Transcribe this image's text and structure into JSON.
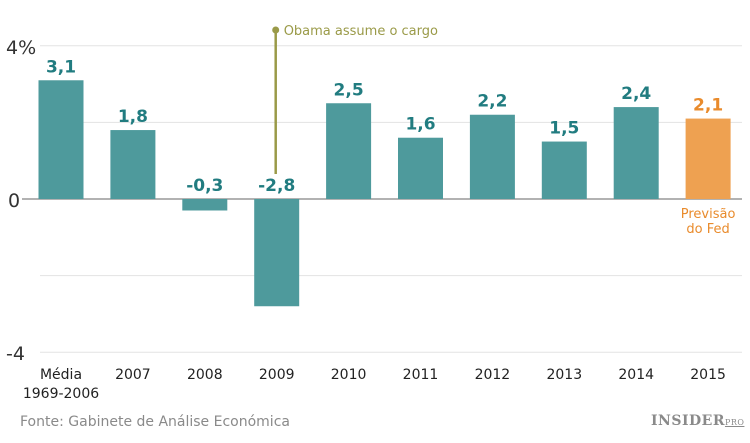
{
  "chart_data": {
    "type": "bar",
    "categories": [
      [
        "Média",
        "1969-2006"
      ],
      [
        "2007"
      ],
      [
        "2008"
      ],
      [
        "2009"
      ],
      [
        "2010"
      ],
      [
        "2011"
      ],
      [
        "2012"
      ],
      [
        "2013"
      ],
      [
        "2014"
      ],
      [
        "2015"
      ]
    ],
    "values": [
      3.1,
      1.8,
      -0.3,
      -2.8,
      2.5,
      1.6,
      2.2,
      1.5,
      2.4,
      2.1
    ],
    "value_labels": [
      "3,1",
      "1,8",
      "-0,3",
      "-2,8",
      "2,5",
      "1,6",
      "2,2",
      "1,5",
      "2,4",
      "2,1"
    ],
    "ylim": [
      -4,
      4
    ],
    "y_ticks": [
      {
        "value": 4,
        "label": "4%"
      },
      {
        "value": 0,
        "label": "0"
      },
      {
        "value": -4,
        "label": "-4"
      }
    ],
    "gridlines": [
      4,
      2,
      0,
      -2,
      -4
    ],
    "grid": true,
    "colors": {
      "actual": "#4e9a9c",
      "forecast": "#eea151",
      "label_actual": "#217c80",
      "label_forecast": "#e98b2c",
      "annotation": "#9a9a48"
    },
    "forecast_index": 9,
    "forecast_label": [
      "Previsão",
      "do Fed"
    ],
    "annotation": {
      "text": "Obama assume o cargo",
      "category_index": 3
    }
  },
  "source": "Fonte: Gabinete de Análise Económica",
  "logo": {
    "main": "INSIDER",
    "sup": "PRO"
  }
}
